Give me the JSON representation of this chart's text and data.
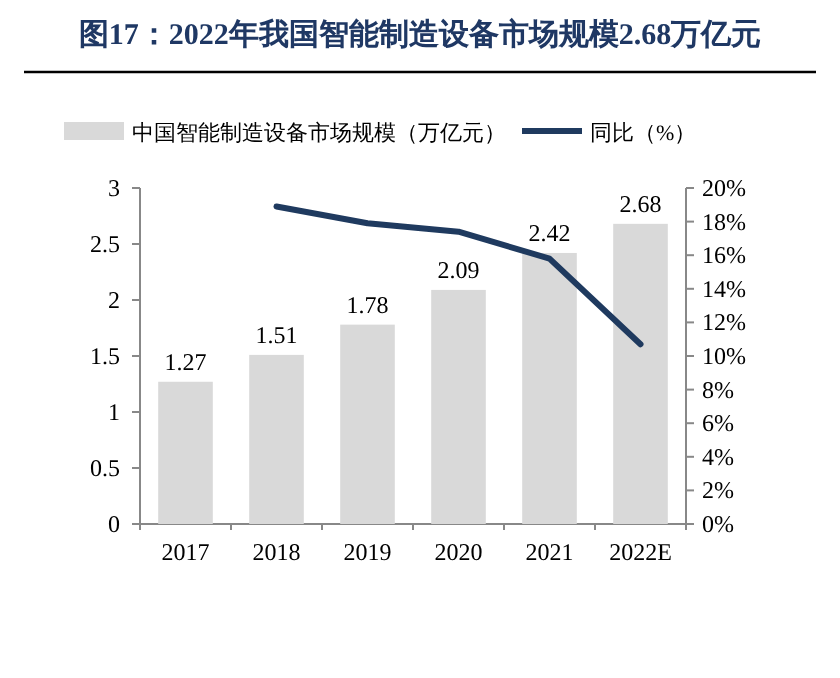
{
  "chart_data": {
    "type": "bar",
    "title": "图17：2022年我国智能制造设备市场规模2.68万亿元",
    "categories": [
      "2017",
      "2018",
      "2019",
      "2020",
      "2021",
      "2022E"
    ],
    "series": [
      {
        "name": "中国智能制造设备市场规模（万亿元）",
        "color": "#d9d9d9",
        "values": [
          1.27,
          1.51,
          1.78,
          2.09,
          2.42,
          2.68
        ],
        "value_labels": [
          "1.27",
          "1.51",
          "1.78",
          "2.09",
          "2.42",
          "2.68"
        ]
      },
      {
        "name": "同比（%）",
        "type": "line",
        "axis": "y2",
        "color": "#1f3a5f",
        "values": [
          null,
          18.9,
          17.9,
          17.4,
          15.8,
          10.7
        ]
      }
    ],
    "ylim": [
      0,
      3
    ],
    "yticks": [
      0,
      0.5,
      1,
      1.5,
      2,
      2.5,
      3
    ],
    "y2lim": [
      0,
      20
    ],
    "y2ticks": [
      {
        "value": 0,
        "label": "0%"
      },
      {
        "value": 2,
        "label": "2%"
      },
      {
        "value": 4,
        "label": "4%"
      },
      {
        "value": 6,
        "label": "6%"
      },
      {
        "value": 8,
        "label": "8%"
      },
      {
        "value": 10,
        "label": "10%"
      },
      {
        "value": 12,
        "label": "12%"
      },
      {
        "value": 14,
        "label": "14%"
      },
      {
        "value": 16,
        "label": "16%"
      },
      {
        "value": 18,
        "label": "18%"
      },
      {
        "value": 20,
        "label": "20%"
      }
    ],
    "legend": "top",
    "grid": false,
    "marker": "none",
    "line_style": "solid"
  }
}
